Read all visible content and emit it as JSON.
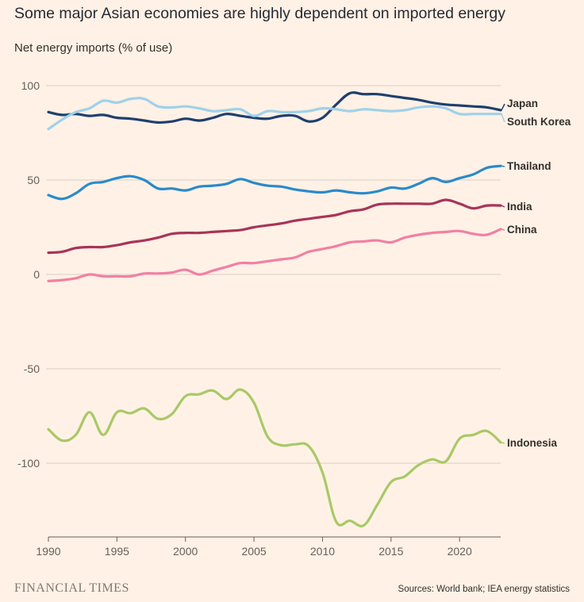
{
  "title": "Some major Asian economies are highly dependent on imported energy",
  "subtitle": "Net energy imports (% of use)",
  "chart_data": {
    "type": "line",
    "ylabel": "Net energy imports (% of use)",
    "xlim": [
      1990,
      2023
    ],
    "ylim": [
      -135,
      100
    ],
    "yticks": [
      100,
      50,
      0,
      -50,
      -100
    ],
    "xticks": [
      1990,
      1995,
      2000,
      2005,
      2010,
      2015,
      2020
    ],
    "grid": true,
    "x": [
      1990,
      1991,
      1992,
      1993,
      1994,
      1995,
      1996,
      1997,
      1998,
      1999,
      2000,
      2001,
      2002,
      2003,
      2004,
      2005,
      2006,
      2007,
      2008,
      2009,
      2010,
      2011,
      2012,
      2013,
      2014,
      2015,
      2016,
      2017,
      2018,
      2019,
      2020,
      2021,
      2022,
      2023
    ],
    "series": [
      {
        "name": "Japan",
        "color": "#1f3f6e",
        "values": [
          86,
          84.5,
          85,
          84,
          84.5,
          83,
          82.5,
          81.5,
          80.5,
          81,
          82.5,
          81.5,
          83,
          85,
          84,
          83,
          82.5,
          84,
          84,
          81,
          83,
          90,
          96,
          95.5,
          95.5,
          94.5,
          93.5,
          92.5,
          91,
          90,
          89.5,
          89,
          88.5,
          87
        ]
      },
      {
        "name": "South Korea",
        "color": "#9fd1ea",
        "values": [
          77,
          82,
          86,
          88,
          92,
          91,
          93,
          93,
          89,
          88.5,
          89,
          88,
          86.5,
          87,
          87.5,
          84,
          86.5,
          86,
          86,
          86.5,
          88,
          87.5,
          86.5,
          87.5,
          87,
          86.5,
          87,
          88.5,
          89,
          88,
          85,
          85,
          85,
          85
        ]
      },
      {
        "name": "Thailand",
        "color": "#2a8acb",
        "values": [
          42,
          40,
          43,
          48,
          49,
          51,
          52,
          50,
          45.5,
          45.5,
          44.5,
          46.5,
          47,
          48,
          50.5,
          48.5,
          47,
          46.5,
          45,
          44,
          43.5,
          44.5,
          43.5,
          43,
          44,
          46,
          45.5,
          48,
          51,
          49,
          51,
          53,
          56.5,
          57.5
        ]
      },
      {
        "name": "India",
        "color": "#a83459",
        "values": [
          11.5,
          12,
          14,
          14.5,
          14.5,
          15.5,
          17,
          18,
          19.5,
          21.5,
          22,
          22,
          22.5,
          23,
          23.5,
          25,
          26,
          27,
          28.5,
          29.5,
          30.5,
          31.5,
          33.5,
          34.5,
          37,
          37.5,
          37.5,
          37.5,
          37.5,
          39.5,
          37.5,
          35,
          36.5,
          36.5
        ]
      },
      {
        "name": "China",
        "color": "#f27fa5",
        "values": [
          -3.5,
          -3,
          -2,
          0,
          -1,
          -1,
          -1,
          0.5,
          0.5,
          1,
          2.5,
          0,
          2,
          4,
          6,
          6,
          7,
          8,
          9,
          12,
          13.5,
          15,
          17,
          17.5,
          18,
          17,
          19.5,
          21,
          22,
          22.5,
          23,
          21.5,
          21,
          24
        ]
      },
      {
        "name": "Indonesia",
        "color": "#a8c967",
        "values": [
          -82,
          -88,
          -85,
          -73,
          -85,
          -73,
          -73.5,
          -71,
          -76.5,
          -74,
          -64.5,
          -63.5,
          -61.5,
          -66,
          -61,
          -68,
          -86,
          -90.5,
          -90,
          -91,
          -105,
          -131,
          -130.5,
          -133,
          -122,
          -110,
          -107,
          -101,
          -98,
          -99,
          -87,
          -85,
          -83,
          -89
        ]
      }
    ],
    "legend": "direct labels at right end of each line"
  },
  "branding": "FINANCIAL TIMES",
  "source": "Sources: World bank; IEA energy statistics"
}
